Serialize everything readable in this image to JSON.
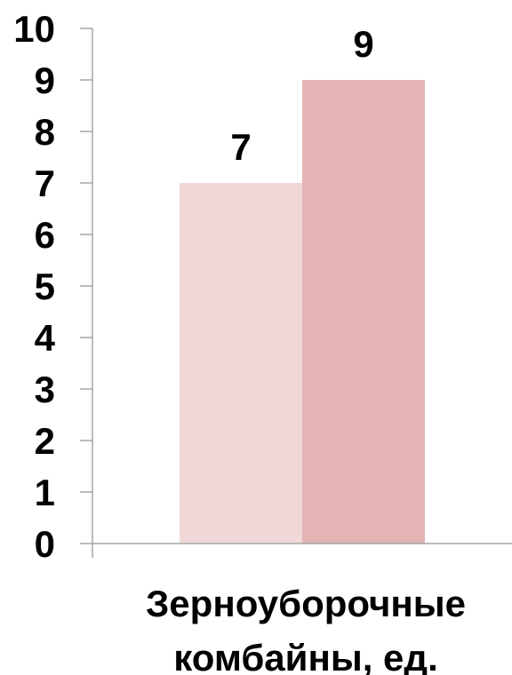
{
  "chart_data": {
    "type": "bar",
    "categories": [
      "Зерноуборочные комбайны, ед."
    ],
    "category_label_lines": [
      "Зерноуборочные",
      "комбайны, ед."
    ],
    "series": [
      {
        "values": [
          7
        ],
        "color": "#f0d8d8"
      },
      {
        "values": [
          9
        ],
        "color": "#e4b3b3"
      }
    ],
    "data_labels": [
      "7",
      "9"
    ],
    "ylim": [
      0,
      10
    ],
    "yticks": [
      0,
      1,
      2,
      3,
      4,
      5,
      6,
      7,
      8,
      9,
      10
    ],
    "ytick_labels": [
      "0",
      "1",
      "2",
      "3",
      "4",
      "5",
      "6",
      "7",
      "8",
      "9",
      "10"
    ],
    "grid": false,
    "title": "",
    "xlabel": "",
    "ylabel": "",
    "axis_color": "#a6a6a6"
  }
}
